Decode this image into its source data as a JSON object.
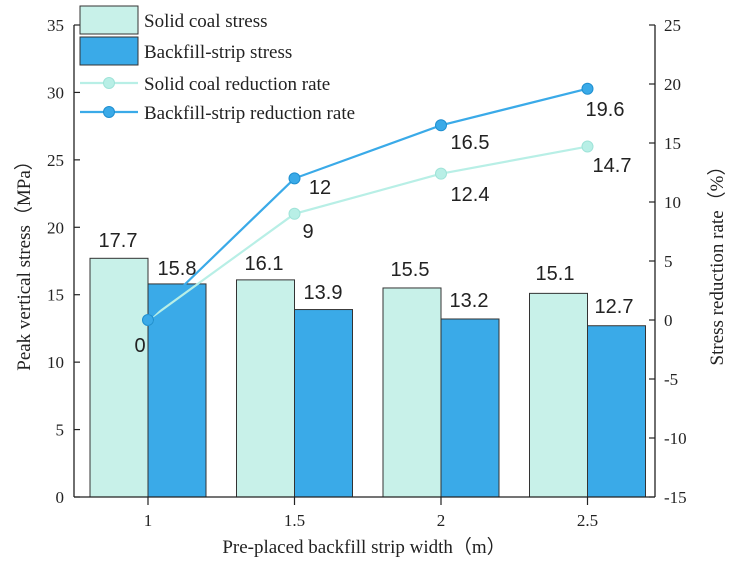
{
  "chart_data": {
    "type": "bar",
    "categories": [
      "1",
      "1.5",
      "2",
      "2.5"
    ],
    "xlabel": "Pre-placed backfill strip width（m）",
    "ylabel": "Peak vertical stress（MPa）",
    "y2label": "Stress reduction rate（%）",
    "ylim": [
      0,
      35
    ],
    "y2lim": [
      -15,
      25
    ],
    "yticks": [
      "0",
      "5",
      "10",
      "15",
      "20",
      "25",
      "30",
      "35"
    ],
    "y2ticks": [
      "-15",
      "-10",
      "-5",
      "0",
      "5",
      "10",
      "15",
      "20",
      "25"
    ],
    "grid": false,
    "legend_position": "top-left",
    "series": [
      {
        "name": "Solid coal stress",
        "kind": "bar",
        "axis": "left",
        "color": "#c8f1e9",
        "values": [
          17.7,
          16.1,
          15.5,
          15.1
        ],
        "labels": [
          "17.7",
          "16.1",
          "15.5",
          "15.1"
        ]
      },
      {
        "name": "Backfill-strip stress",
        "kind": "bar",
        "axis": "left",
        "color": "#3aaae8",
        "values": [
          15.8,
          13.9,
          13.2,
          12.7
        ],
        "labels": [
          "15.8",
          "13.9",
          "13.2",
          "12.7"
        ]
      },
      {
        "name": "Solid coal reduction rate",
        "kind": "line",
        "axis": "right",
        "color": "#b8efe6",
        "values": [
          0,
          9,
          12.4,
          14.7
        ],
        "labels": [
          "0",
          "9",
          "12.4",
          "14.7"
        ]
      },
      {
        "name": "Backfill-strip reduction rate",
        "kind": "line",
        "axis": "right",
        "color": "#3aaae8",
        "values": [
          0,
          12,
          16.5,
          19.6
        ],
        "labels": [
          "",
          "12",
          "16.5",
          "19.6"
        ]
      }
    ]
  }
}
